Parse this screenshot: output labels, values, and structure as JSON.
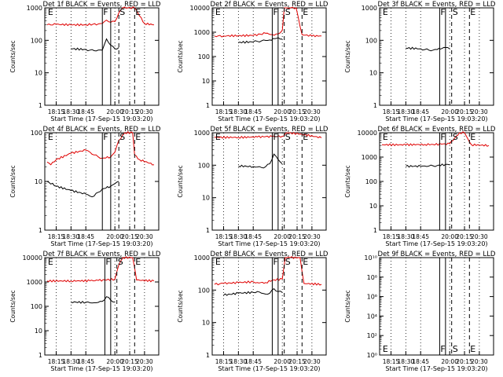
{
  "chart_data": [
    {
      "type": "line",
      "title": "Det 1f BLACK = Events, RED = LLD",
      "xlabel": "Start Time (17-Sep-15 19:03:20)",
      "ylabel": "Counts/sec",
      "yscale": "log",
      "ylim": [
        1,
        1000
      ],
      "x_ticks": [
        "18:15",
        "18:30",
        "18:45",
        "20:00",
        "20:15",
        "20:30"
      ],
      "y_ticks": [
        "1",
        "10",
        "100",
        "1000"
      ],
      "markers": [
        {
          "label": "E",
          "x": "18:03",
          "style": "none"
        },
        {
          "label": "F",
          "x": "19:45",
          "style": "solid"
        },
        {
          "label": "",
          "x": "19:55",
          "style": "solid"
        },
        {
          "label": "S",
          "x": "20:04",
          "style": "dashed"
        },
        {
          "label": "E",
          "x": "20:20",
          "style": "dashed"
        }
      ],
      "series": [
        {
          "color": "#e00000",
          "x": [
            "18:03",
            "18:15",
            "18:30",
            "18:45",
            "19:30",
            "19:45",
            "19:50",
            "19:55",
            "20:00",
            "20:04",
            "20:08",
            "20:20",
            "20:30",
            "20:40"
          ],
          "values": [
            300,
            310,
            300,
            300,
            320,
            330,
            420,
            360,
            380,
            700,
            1000,
            1000,
            330,
            300
          ]
        },
        {
          "color": "#000000",
          "x": [
            "18:30",
            "18:45",
            "19:00",
            "19:15",
            "19:30",
            "19:45",
            "19:50",
            "19:55",
            "20:00",
            "20:04"
          ],
          "values": [
            55,
            52,
            50,
            48,
            50,
            50,
            110,
            70,
            55,
            60
          ]
        }
      ]
    },
    {
      "type": "line",
      "title": "Det 2f BLACK = Events, RED = LLD",
      "xlabel": "Start Time (17-Sep-15 19:03:20)",
      "ylabel": "Counts/sec",
      "yscale": "log",
      "ylim": [
        1,
        10000
      ],
      "x_ticks": [
        "18:15",
        "18:30",
        "18:45",
        "20:00",
        "20:15",
        "20:30"
      ],
      "y_ticks": [
        "1",
        "10",
        "100",
        "1000",
        "10000"
      ],
      "markers": [
        {
          "label": "E",
          "x": "18:03",
          "style": "none"
        },
        {
          "label": "F",
          "x": "19:48",
          "style": "solid"
        },
        {
          "label": "",
          "x": "19:55",
          "style": "solid"
        },
        {
          "label": "S",
          "x": "20:02",
          "style": "dashed"
        },
        {
          "label": "E",
          "x": "20:20",
          "style": "dashed"
        }
      ],
      "series": [
        {
          "color": "#e00000",
          "x": [
            "18:03",
            "18:15",
            "18:30",
            "18:45",
            "19:30",
            "19:48",
            "19:55",
            "20:00",
            "20:02",
            "20:05",
            "20:14",
            "20:20",
            "20:30",
            "20:40"
          ],
          "values": [
            700,
            700,
            720,
            740,
            900,
            800,
            850,
            1200,
            10000,
            10000,
            10000,
            800,
            700,
            700
          ]
        },
        {
          "color": "#000000",
          "x": [
            "18:30",
            "18:45",
            "19:00",
            "19:15",
            "19:30",
            "19:45",
            "19:55",
            "20:00"
          ],
          "values": [
            380,
            400,
            420,
            440,
            460,
            480,
            600,
            520
          ]
        }
      ]
    },
    {
      "type": "line",
      "title": "Det 3f BLACK = Events, RED = LLD",
      "xlabel": "Start Time (17-Sep-15 19:03:20)",
      "ylabel": "Counts/sec",
      "yscale": "log",
      "ylim": [
        1,
        1000
      ],
      "x_ticks": [
        "18:15",
        "18:30",
        "18:45",
        "20:00",
        "20:15",
        "20:30"
      ],
      "y_ticks": [
        "1",
        "10",
        "100",
        "1000"
      ],
      "markers": [
        {
          "label": "E",
          "x": "18:03",
          "style": "none"
        },
        {
          "label": "F",
          "x": "19:48",
          "style": "solid"
        },
        {
          "label": "",
          "x": "19:55",
          "style": "solid"
        },
        {
          "label": "S",
          "x": "20:02",
          "style": "dashed"
        },
        {
          "label": "E",
          "x": "20:20",
          "style": "dashed"
        }
      ],
      "series": [
        {
          "color": "#000000",
          "x": [
            "18:30",
            "18:45",
            "19:00",
            "19:15",
            "19:30",
            "19:45",
            "19:55",
            "20:00"
          ],
          "values": [
            58,
            55,
            52,
            50,
            50,
            52,
            60,
            55
          ]
        }
      ]
    },
    {
      "type": "line",
      "title": "Det 4f BLACK = Events, RED = LLD",
      "xlabel": "Start Time (17-Sep-15 19:03:20)",
      "ylabel": "Counts/sec",
      "yscale": "log",
      "ylim": [
        1,
        100
      ],
      "x_ticks": [
        "18:15",
        "18:30",
        "18:45",
        "20:00",
        "20:15",
        "20:30"
      ],
      "y_ticks": [
        "1",
        "10",
        "100"
      ],
      "markers": [
        {
          "label": "E",
          "x": "18:03",
          "style": "none"
        },
        {
          "label": "F",
          "x": "19:45",
          "style": "solid"
        },
        {
          "label": "",
          "x": "19:55",
          "style": "solid"
        },
        {
          "label": "S",
          "x": "20:04",
          "style": "dashed"
        },
        {
          "label": "E",
          "x": "20:20",
          "style": "dashed"
        }
      ],
      "series": [
        {
          "color": "#e00000",
          "x": [
            "18:03",
            "18:08",
            "18:15",
            "18:30",
            "18:45",
            "19:00",
            "19:15",
            "19:30",
            "19:45",
            "19:55",
            "20:00",
            "20:04",
            "20:10",
            "20:18",
            "20:20",
            "20:25",
            "20:40"
          ],
          "values": [
            25,
            22,
            28,
            38,
            44,
            40,
            35,
            32,
            30,
            32,
            40,
            70,
            100,
            100,
            35,
            28,
            22
          ]
        },
        {
          "color": "#000000",
          "x": [
            "18:03",
            "18:15",
            "18:30",
            "18:45",
            "19:00",
            "19:15",
            "19:30",
            "19:45",
            "19:55",
            "20:00",
            "20:04"
          ],
          "values": [
            10,
            8,
            6.5,
            5.5,
            5,
            5,
            6,
            7,
            8,
            9,
            10
          ]
        }
      ]
    },
    {
      "type": "line",
      "title": "Det 5f BLACK = Events, RED = LLD",
      "xlabel": "Start Time (17-Sep-15 19:03:20)",
      "ylabel": "Counts/sec",
      "yscale": "log",
      "ylim": [
        1,
        1000
      ],
      "x_ticks": [
        "18:15",
        "18:30",
        "18:45",
        "20:00",
        "20:15",
        "20:30"
      ],
      "y_ticks": [
        "1",
        "10",
        "100",
        "1000"
      ],
      "markers": [
        {
          "label": "E",
          "x": "18:03",
          "style": "none"
        },
        {
          "label": "F",
          "x": "19:48",
          "style": "solid"
        },
        {
          "label": "",
          "x": "19:55",
          "style": "solid"
        },
        {
          "label": "S",
          "x": "20:02",
          "style": "dashed"
        },
        {
          "label": "E",
          "x": "20:20",
          "style": "dashed"
        }
      ],
      "series": [
        {
          "color": "#e00000",
          "x": [
            "18:03",
            "18:30",
            "19:00",
            "19:30",
            "19:48",
            "20:00",
            "20:05",
            "20:20",
            "20:40"
          ],
          "values": [
            720,
            720,
            740,
            760,
            760,
            780,
            1000,
            900,
            700
          ]
        },
        {
          "color": "#000000",
          "x": [
            "18:30",
            "18:45",
            "19:00",
            "19:15",
            "19:30",
            "19:45",
            "19:50",
            "19:55",
            "20:00"
          ],
          "values": [
            95,
            90,
            88,
            85,
            90,
            110,
            220,
            150,
            110
          ]
        }
      ]
    },
    {
      "type": "line",
      "title": "Det 6f BLACK = Events, RED = LLD",
      "xlabel": "Start Time (17-Sep-15 19:03:20)",
      "ylabel": "Counts/sec",
      "yscale": "log",
      "ylim": [
        1,
        10000
      ],
      "x_ticks": [
        "18:15",
        "18:30",
        "18:45",
        "20:00",
        "20:15",
        "20:30"
      ],
      "y_ticks": [
        "1",
        "10",
        "100",
        "1000",
        "10000"
      ],
      "markers": [
        {
          "label": "E",
          "x": "18:03",
          "style": "none"
        },
        {
          "label": "F",
          "x": "19:48",
          "style": "solid"
        },
        {
          "label": "",
          "x": "19:55",
          "style": "solid"
        },
        {
          "label": "S",
          "x": "20:02",
          "style": "dashed"
        },
        {
          "label": "E",
          "x": "20:20",
          "style": "dashed"
        }
      ],
      "series": [
        {
          "color": "#e00000",
          "x": [
            "18:03",
            "18:30",
            "19:00",
            "19:30",
            "19:50",
            "20:00",
            "20:05",
            "20:10",
            "20:15",
            "20:18",
            "20:22",
            "20:40"
          ],
          "values": [
            3200,
            3200,
            3300,
            3300,
            3400,
            3500,
            6000,
            10000,
            10000,
            6000,
            3200,
            3000
          ]
        },
        {
          "color": "#000000",
          "x": [
            "18:30",
            "18:45",
            "19:00",
            "19:15",
            "19:30",
            "19:45",
            "19:55",
            "20:00"
          ],
          "values": [
            420,
            420,
            430,
            430,
            440,
            450,
            500,
            480
          ]
        }
      ]
    },
    {
      "type": "line",
      "title": "Det 7f BLACK = Events, RED = LLD",
      "xlabel": "Start Time (17-Sep-15 19:03:20)",
      "ylabel": "Counts/sec",
      "yscale": "log",
      "ylim": [
        1,
        10000
      ],
      "x_ticks": [
        "18:15",
        "18:30",
        "18:45",
        "20:00",
        "20:15",
        "20:30"
      ],
      "y_ticks": [
        "1",
        "10",
        "100",
        "1000",
        "10000"
      ],
      "markers": [
        {
          "label": "E",
          "x": "18:03",
          "style": "none"
        },
        {
          "label": "F",
          "x": "19:48",
          "style": "solid"
        },
        {
          "label": "",
          "x": "19:55",
          "style": "solid"
        },
        {
          "label": "S",
          "x": "20:02",
          "style": "dashed"
        },
        {
          "label": "E",
          "x": "20:20",
          "style": "dashed"
        }
      ],
      "series": [
        {
          "color": "#e00000",
          "x": [
            "18:03",
            "18:30",
            "19:00",
            "19:30",
            "19:48",
            "20:00",
            "20:04",
            "20:08",
            "20:18",
            "20:22",
            "20:40"
          ],
          "values": [
            1100,
            1100,
            1120,
            1150,
            1200,
            1300,
            5000,
            10000,
            10000,
            1200,
            1100
          ]
        },
        {
          "color": "#000000",
          "x": [
            "18:30",
            "18:45",
            "19:00",
            "19:15",
            "19:30",
            "19:45",
            "19:50",
            "19:55",
            "20:00"
          ],
          "values": [
            150,
            145,
            140,
            140,
            145,
            160,
            250,
            180,
            150
          ]
        }
      ]
    },
    {
      "type": "line",
      "title": "Det 8f BLACK = Events, RED = LLD",
      "xlabel": "Start Time (17-Sep-15 19:03:20)",
      "ylabel": "Counts/sec",
      "yscale": "log",
      "ylim": [
        1,
        1000
      ],
      "x_ticks": [
        "18:15",
        "18:30",
        "18:45",
        "20:00",
        "20:15",
        "20:30"
      ],
      "y_ticks": [
        "1",
        "10",
        "100",
        "1000"
      ],
      "markers": [
        {
          "label": "E",
          "x": "18:03",
          "style": "none"
        },
        {
          "label": "F",
          "x": "19:48",
          "style": "solid"
        },
        {
          "label": "",
          "x": "19:55",
          "style": "solid"
        },
        {
          "label": "S",
          "x": "20:02",
          "style": "dashed"
        },
        {
          "label": "E",
          "x": "20:20",
          "style": "dashed"
        }
      ],
      "series": [
        {
          "color": "#e00000",
          "x": [
            "18:03",
            "18:15",
            "18:30",
            "18:45",
            "19:00",
            "19:30",
            "19:48",
            "20:00",
            "20:03",
            "20:08",
            "20:18",
            "20:22",
            "20:40"
          ],
          "values": [
            150,
            160,
            170,
            180,
            170,
            170,
            200,
            220,
            1000,
            1000,
            1000,
            160,
            150
          ]
        },
        {
          "color": "#000000",
          "x": [
            "18:15",
            "18:30",
            "18:45",
            "19:00",
            "19:15",
            "19:30",
            "19:45",
            "19:50",
            "19:55",
            "20:00"
          ],
          "values": [
            70,
            80,
            85,
            90,
            80,
            75,
            80,
            110,
            90,
            85
          ]
        }
      ]
    },
    {
      "type": "line",
      "title": "Det 9f BLACK = Events, RED = LLD",
      "xlabel": "Start Time (17-Sep-15 19:03:20)",
      "ylabel": "Counts/sec",
      "yscale": "log",
      "ylim": [
        1,
        10000000000
      ],
      "x_ticks": [
        "18:15",
        "18:30",
        "18:45",
        "20:00",
        "20:15",
        "20:30"
      ],
      "y_ticks": [
        "10⁰",
        "10²",
        "10⁴",
        "10⁶",
        "10⁸",
        "10¹⁰"
      ],
      "markers": [
        {
          "label": "E",
          "x": "18:03",
          "style": "none"
        },
        {
          "label": "F",
          "x": "19:48",
          "style": "solid"
        },
        {
          "label": "",
          "x": "19:55",
          "style": "solid"
        },
        {
          "label": "S",
          "x": "20:02",
          "style": "dashed"
        },
        {
          "label": "E",
          "x": "20:20",
          "style": "dashed"
        }
      ],
      "series": []
    }
  ]
}
